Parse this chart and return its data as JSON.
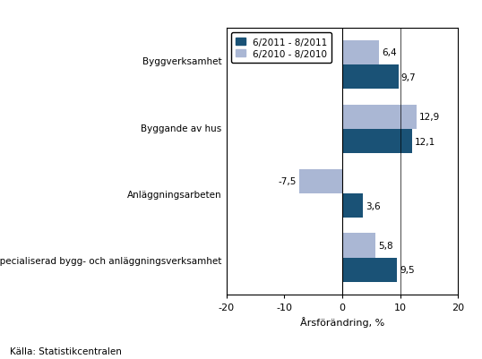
{
  "categories": [
    "Byggverksamhet",
    "Byggande av hus",
    "Anläggningsarbeten",
    "Specialiserad bygg- och anläggningsverksamhet"
  ],
  "series_2011": [
    9.7,
    12.1,
    3.6,
    9.5
  ],
  "series_2010": [
    6.4,
    12.9,
    -7.5,
    5.8
  ],
  "color_2011": "#1a5276",
  "color_2010": "#aab7d4",
  "legend_2011": "6/2011 - 8/2011",
  "legend_2010": "6/2010 - 8/2010",
  "xlabel": "Årsförändring, %",
  "xlim": [
    -20,
    20
  ],
  "xticks": [
    -20,
    -10,
    0,
    10,
    20
  ],
  "source": "Källa: Statistikcentralen",
  "bar_height": 0.38,
  "background_color": "#ffffff",
  "label_values_2011": [
    "9,7",
    "12,1",
    "3,6",
    "9,5"
  ],
  "label_values_2010": [
    "6,4",
    "12,9",
    "-7,5",
    "5,8"
  ]
}
